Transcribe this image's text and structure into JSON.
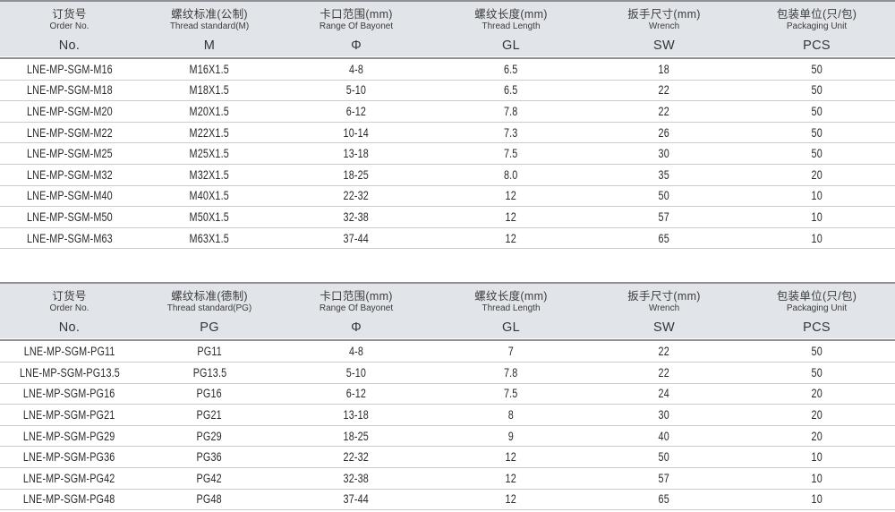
{
  "colors": {
    "header_bg": "#e1e4e9",
    "header_border": "#8f9196",
    "row_divider": "#cbcccd",
    "text": "#2a2a2b"
  },
  "tables": [
    {
      "name": "metric-thread-table",
      "columns": [
        {
          "zh": "订货号",
          "en": "Order No.",
          "code": "No."
        },
        {
          "zh": "螺纹标准(公制)",
          "en": "Thread standard(M)",
          "code": "M"
        },
        {
          "zh": "卡口范围(mm)",
          "en": "Range Of Bayonet",
          "code": "Φ"
        },
        {
          "zh": "螺纹长度(mm)",
          "en": "Thread Length",
          "code": "GL"
        },
        {
          "zh": "扳手尺寸(mm)",
          "en": "Wrench",
          "code": "SW"
        },
        {
          "zh": "包装单位(只/包)",
          "en": "Packaging Unit",
          "code": "PCS"
        }
      ],
      "rows": [
        [
          "LNE-MP-SGM-M16",
          "M16X1.5",
          "4-8",
          "6.5",
          "18",
          "50"
        ],
        [
          "LNE-MP-SGM-M18",
          "M18X1.5",
          "5-10",
          "6.5",
          "22",
          "50"
        ],
        [
          "LNE-MP-SGM-M20",
          "M20X1.5",
          "6-12",
          "7.8",
          "22",
          "50"
        ],
        [
          "LNE-MP-SGM-M22",
          "M22X1.5",
          "10-14",
          "7.3",
          "26",
          "50"
        ],
        [
          "LNE-MP-SGM-M25",
          "M25X1.5",
          "13-18",
          "7.5",
          "30",
          "50"
        ],
        [
          "LNE-MP-SGM-M32",
          "M32X1.5",
          "18-25",
          "8.0",
          "35",
          "20"
        ],
        [
          "LNE-MP-SGM-M40",
          "M40X1.5",
          "22-32",
          "12",
          "50",
          "10"
        ],
        [
          "LNE-MP-SGM-M50",
          "M50X1.5",
          "32-38",
          "12",
          "57",
          "10"
        ],
        [
          "LNE-MP-SGM-M63",
          "M63X1.5",
          "37-44",
          "12",
          "65",
          "10"
        ]
      ]
    },
    {
      "name": "pg-thread-table",
      "columns": [
        {
          "zh": "订货号",
          "en": "Order No.",
          "code": "No."
        },
        {
          "zh": "螺纹标准(德制)",
          "en": "Thread standard(PG)",
          "code": "PG"
        },
        {
          "zh": "卡口范围(mm)",
          "en": "Range Of Bayonet",
          "code": "Φ"
        },
        {
          "zh": "螺纹长度(mm)",
          "en": "Thread Length",
          "code": "GL"
        },
        {
          "zh": "扳手尺寸(mm)",
          "en": "Wrench",
          "code": "SW"
        },
        {
          "zh": "包装单位(只/包)",
          "en": "Packaging Unit",
          "code": "PCS"
        }
      ],
      "rows": [
        [
          "LNE-MP-SGM-PG11",
          "PG11",
          "4-8",
          "7",
          "22",
          "50"
        ],
        [
          "LNE-MP-SGM-PG13.5",
          "PG13.5",
          "5-10",
          "7.8",
          "22",
          "50"
        ],
        [
          "LNE-MP-SGM-PG16",
          "PG16",
          "6-12",
          "7.5",
          "24",
          "20"
        ],
        [
          "LNE-MP-SGM-PG21",
          "PG21",
          "13-18",
          "8",
          "30",
          "20"
        ],
        [
          "LNE-MP-SGM-PG29",
          "PG29",
          "18-25",
          "9",
          "40",
          "20"
        ],
        [
          "LNE-MP-SGM-PG36",
          "PG36",
          "22-32",
          "12",
          "50",
          "10"
        ],
        [
          "LNE-MP-SGM-PG42",
          "PG42",
          "32-38",
          "12",
          "57",
          "10"
        ],
        [
          "LNE-MP-SGM-PG48",
          "PG48",
          "37-44",
          "12",
          "65",
          "10"
        ]
      ]
    }
  ]
}
